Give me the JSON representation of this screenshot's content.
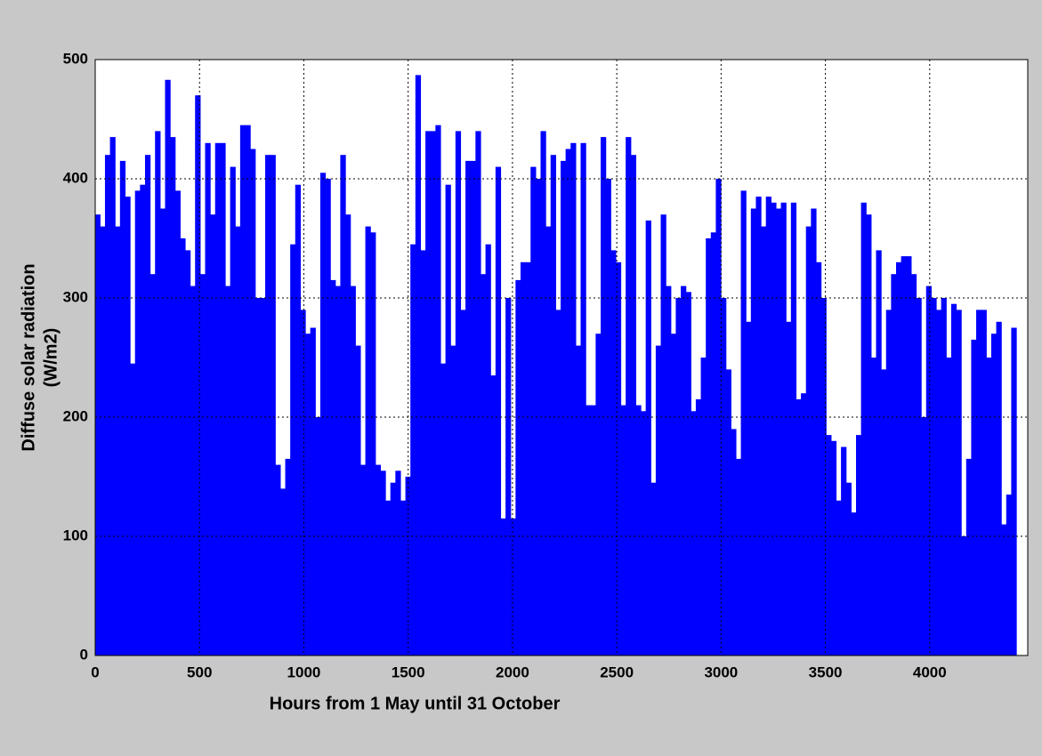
{
  "chart_data": {
    "type": "bar",
    "xlabel": "Hours from 1 May until 31 October",
    "ylabel": [
      "Diffuse solar radiation",
      "(W/m2)"
    ],
    "color": "#0000ff",
    "grid": true,
    "xlim": [
      0,
      4470
    ],
    "ylim": [
      0,
      500
    ],
    "xticks": [
      0,
      500,
      1000,
      1500,
      2000,
      2500,
      3000,
      3500,
      4000
    ],
    "yticks": [
      0,
      100,
      200,
      300,
      400,
      500
    ],
    "x": [
      12,
      36,
      60,
      84,
      108,
      132,
      156,
      180,
      204,
      228,
      252,
      276,
      300,
      324,
      348,
      372,
      396,
      420,
      444,
      468,
      492,
      516,
      540,
      564,
      588,
      612,
      636,
      660,
      684,
      708,
      732,
      756,
      780,
      804,
      828,
      852,
      876,
      900,
      924,
      948,
      972,
      996,
      1020,
      1044,
      1068,
      1092,
      1116,
      1140,
      1164,
      1188,
      1212,
      1236,
      1260,
      1284,
      1308,
      1332,
      1356,
      1380,
      1404,
      1428,
      1452,
      1476,
      1500,
      1524,
      1548,
      1572,
      1596,
      1620,
      1644,
      1668,
      1692,
      1716,
      1740,
      1764,
      1788,
      1812,
      1836,
      1860,
      1884,
      1908,
      1932,
      1956,
      1980,
      2004,
      2028,
      2052,
      2076,
      2100,
      2124,
      2148,
      2172,
      2196,
      2220,
      2244,
      2268,
      2292,
      2316,
      2340,
      2364,
      2388,
      2412,
      2436,
      2460,
      2484,
      2508,
      2532,
      2556,
      2580,
      2604,
      2628,
      2652,
      2676,
      2700,
      2724,
      2748,
      2772,
      2796,
      2820,
      2844,
      2868,
      2892,
      2916,
      2940,
      2964,
      2988,
      3012,
      3036,
      3060,
      3084,
      3108,
      3132,
      3156,
      3180,
      3204,
      3228,
      3252,
      3276,
      3300,
      3324,
      3348,
      3372,
      3396,
      3420,
      3444,
      3468,
      3492,
      3516,
      3540,
      3564,
      3588,
      3612,
      3636,
      3660,
      3684,
      3708,
      3732,
      3756,
      3780,
      3804,
      3828,
      3852,
      3876,
      3900,
      3924,
      3948,
      3972,
      3996,
      4020,
      4044,
      4068,
      4092,
      4116,
      4140,
      4164,
      4188,
      4212,
      4236,
      4260,
      4284,
      4308,
      4332,
      4356,
      4380,
      4404
    ],
    "values": [
      370,
      360,
      420,
      435,
      360,
      415,
      385,
      245,
      390,
      395,
      420,
      320,
      440,
      375,
      483,
      435,
      390,
      350,
      340,
      310,
      470,
      320,
      430,
      370,
      430,
      430,
      310,
      410,
      360,
      445,
      445,
      425,
      300,
      300,
      420,
      420,
      160,
      140,
      165,
      345,
      395,
      290,
      270,
      275,
      200,
      405,
      400,
      315,
      310,
      420,
      370,
      310,
      260,
      160,
      360,
      355,
      160,
      155,
      130,
      145,
      155,
      130,
      150,
      345,
      487,
      340,
      440,
      440,
      445,
      245,
      395,
      260,
      440,
      290,
      415,
      415,
      440,
      320,
      345,
      235,
      410,
      115,
      300,
      115,
      315,
      330,
      330,
      410,
      400,
      440,
      360,
      420,
      290,
      415,
      425,
      430,
      260,
      430,
      210,
      210,
      270,
      435,
      400,
      340,
      330,
      210,
      435,
      420,
      210,
      205,
      365,
      145,
      260,
      370,
      310,
      270,
      300,
      310,
      305,
      205,
      215,
      250,
      350,
      355,
      400,
      300,
      240,
      190,
      165,
      390,
      280,
      375,
      385,
      360,
      385,
      380,
      375,
      380,
      280,
      380,
      215,
      220,
      360,
      375,
      330,
      300,
      185,
      180,
      130,
      175,
      145,
      120,
      185,
      380,
      370,
      250,
      340,
      240,
      290,
      320,
      330,
      335,
      335,
      320,
      300,
      200,
      310,
      300,
      290,
      300,
      250,
      295,
      290,
      100,
      165,
      265,
      290,
      290,
      250,
      270,
      280,
      110,
      135,
      275
    ]
  }
}
